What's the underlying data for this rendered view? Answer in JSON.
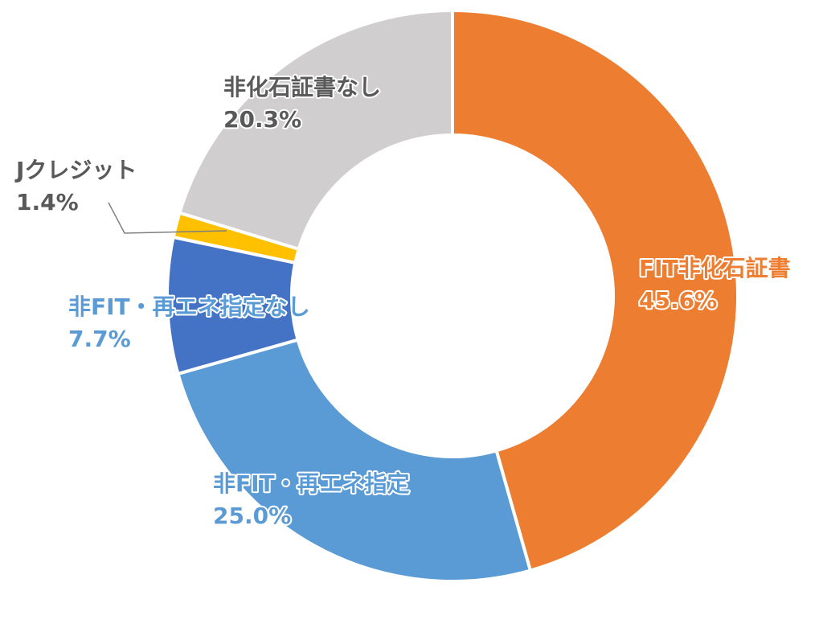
{
  "chart_data": {
    "type": "donut",
    "categories": [
      "FIT非化石証書",
      "非FIT・再エネ指定",
      "非FIT・再エネ指定なし",
      "Jクレジット",
      "非化石証書なし"
    ],
    "values": [
      45.6,
      25.0,
      7.7,
      1.4,
      20.3
    ],
    "value_labels": [
      "45.6%",
      "25.0%",
      "7.7%",
      "1.4%",
      "20.3%"
    ],
    "colors": [
      "#ED7D31",
      "#5B9BD5",
      "#4472C4",
      "#FFC000",
      "#D0CECE"
    ],
    "label_colors": [
      "#ED7D31",
      "#5B9BD5",
      "#5B9BD5",
      "#595959",
      "#595959"
    ]
  }
}
